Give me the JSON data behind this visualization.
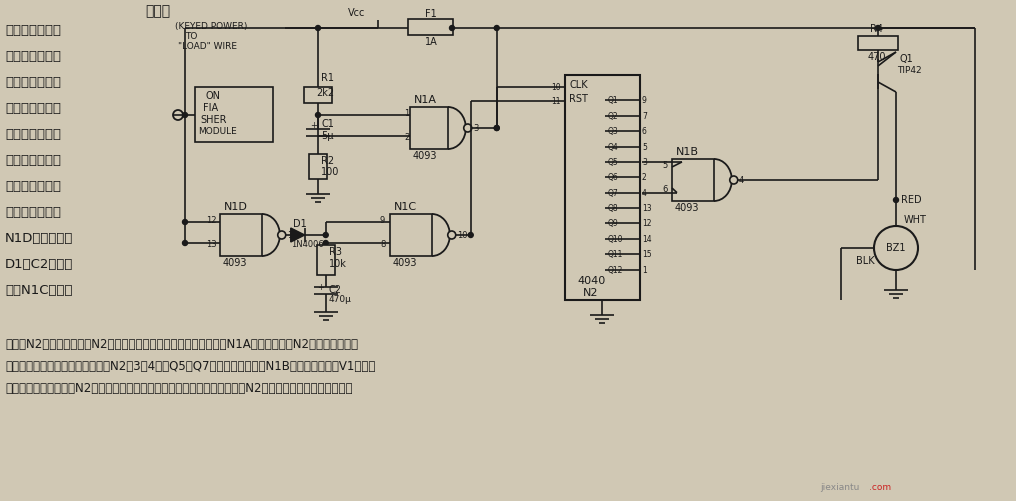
{
  "bg_color": "#d0c8b4",
  "text_color": "#1a1a1a",
  "figsize": [
    10.16,
    5.01
  ],
  "dpi": 100,
  "left_title": "转弯信",
  "left_lines": [
    "号告知器　本装",
    "置可以提醒您现",
    "在是处于转弯状",
    "态，电路中输入",
    "信号是从转弯自",
    "动闪光信号输出",
    "线取得的一串脉",
    "冲信号：一路给",
    "N1D，反相后经",
    "D1向C2充电，",
    "再由N1C整形反"
  ],
  "bottom_lines": [
    "相作为N2的复位信号，使N2输出为低电平；第二路经微分电路后由N1A整形反相作为N2的时钟信号，随",
    "时钟的输入计数器便开始计数，当N2第3、4脚（Q5和Q7）都是高电平时，N1B输出低电平使得V1导通，",
    "音乐蜂鸣器发声，直到N2被复位为止。等待的时间及发声的次数都可由改变N2两输出来决定，可自行更换。"
  ],
  "watermark1": "jiexiantu",
  "watermark2": ".com"
}
